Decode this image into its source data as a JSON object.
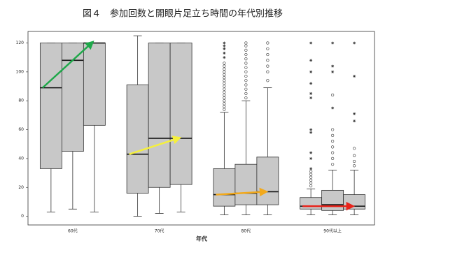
{
  "chart_data": {
    "type": "boxplot",
    "title": "図４　参加回数と開眼片足立ち時間の年代別推移",
    "x_label": "年代",
    "categories": [
      "60代",
      "70代",
      "80代",
      "90代以上"
    ],
    "ylim": [
      -6,
      128
    ],
    "yticks": [
      0,
      20,
      40,
      60,
      80,
      100,
      120
    ],
    "box_color": "#c8c8c8",
    "arrow_colors": [
      "#1fa84a",
      "#f5f03c",
      "#f2a91c",
      "#e8231b"
    ],
    "series": [
      {
        "boxes": [
          {
            "min": 3,
            "q1": 33,
            "median": 89,
            "q3": 120,
            "max": 120,
            "outliers": [],
            "extremes": []
          },
          {
            "min": 0,
            "q1": 16,
            "median": 43,
            "q3": 91,
            "max": 125,
            "outliers": [],
            "extremes": []
          },
          {
            "min": 1,
            "q1": 7,
            "median": 15,
            "q3": 33,
            "max": 72,
            "outliers": [
              74,
              76,
              78,
              80,
              82,
              84,
              86,
              88,
              90,
              92,
              94,
              96,
              98,
              100,
              102,
              104,
              106
            ],
            "extremes": [
              110,
              113,
              116,
              118,
              120
            ]
          },
          {
            "min": 1,
            "q1": 5,
            "median": 7,
            "q3": 13,
            "max": 19,
            "outliers": [
              21,
              23,
              25,
              27,
              29,
              31
            ],
            "extremes": [
              33,
              40,
              44,
              58,
              60,
              82,
              85,
              92,
              100,
              108,
              120
            ]
          }
        ]
      },
      {
        "boxes": [
          {
            "min": 5,
            "q1": 45,
            "median": 108,
            "q3": 120,
            "max": 120,
            "outliers": [],
            "extremes": []
          },
          {
            "min": 2,
            "q1": 20,
            "median": 54,
            "q3": 120,
            "max": 120,
            "outliers": [],
            "extremes": []
          },
          {
            "min": 1,
            "q1": 8,
            "median": 16,
            "q3": 36,
            "max": 80,
            "outliers": [
              82,
              85,
              88,
              91,
              94,
              97,
              100,
              103,
              106,
              109,
              112,
              115,
              118,
              120
            ],
            "extremes": []
          },
          {
            "min": 1,
            "q1": 4,
            "median": 8,
            "q3": 18,
            "max": 32,
            "outliers": [
              36,
              40,
              44,
              48,
              52,
              56,
              60,
              84
            ],
            "extremes": [
              75,
              100,
              104,
              120
            ]
          }
        ]
      },
      {
        "boxes": [
          {
            "min": 3,
            "q1": 63,
            "median": 120,
            "q3": 120,
            "max": 120,
            "outliers": [],
            "extremes": []
          },
          {
            "min": 3,
            "q1": 22,
            "median": 54,
            "q3": 120,
            "max": 120,
            "outliers": [],
            "extremes": []
          },
          {
            "min": 1,
            "q1": 8,
            "median": 17,
            "q3": 41,
            "max": 89,
            "outliers": [
              94,
              100,
              104,
              108,
              112,
              116,
              120
            ],
            "extremes": []
          },
          {
            "min": 1,
            "q1": 5,
            "median": 7,
            "q3": 15,
            "max": 32,
            "outliers": [
              35,
              38,
              42,
              47
            ],
            "extremes": [
              66,
              71,
              97,
              120
            ]
          }
        ]
      }
    ]
  }
}
